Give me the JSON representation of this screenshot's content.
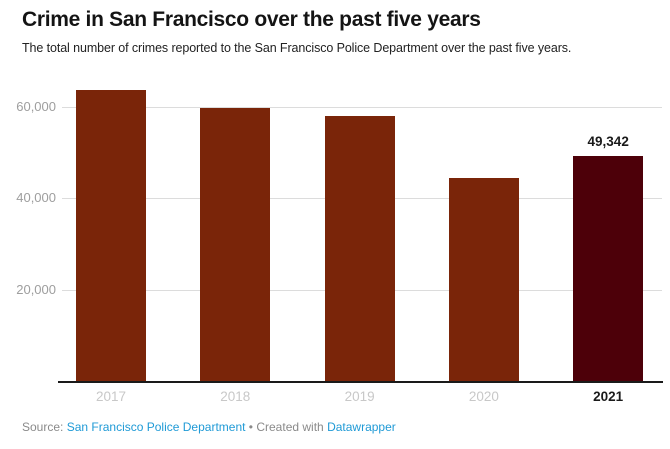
{
  "header": {
    "title": "Crime in San Francisco over the past five years",
    "subtitle": "The total number of crimes reported to the San Francisco Police Department over the past five years."
  },
  "chart_data": {
    "type": "bar",
    "title": "Crime in San Francisco over the past five years",
    "subtitle": "The total number of crimes reported to the San Francisco Police Department over the past five years.",
    "categories": [
      "2017",
      "2018",
      "2019",
      "2020",
      "2021"
    ],
    "values": [
      63800,
      59800,
      58100,
      44400,
      49342
    ],
    "data_labels": [
      null,
      null,
      null,
      null,
      "49,342"
    ],
    "highlight_index": 4,
    "yticks": [
      {
        "value": 20000,
        "label": "20,000"
      },
      {
        "value": 40000,
        "label": "40,000"
      },
      {
        "value": 60000,
        "label": "60,000"
      }
    ],
    "ylim": [
      0,
      65500
    ],
    "grid": true,
    "legend": "none",
    "colors": {
      "bar": "#7a2509",
      "highlight_bar": "#4d0009",
      "gridline": "#dcdcdc",
      "axis": "#1a1a1a",
      "ytick_text": "#9e9e9e",
      "xtick_text": "#c8c8c8",
      "xtick_highlight_text": "#1a1a1a"
    }
  },
  "footer": {
    "source_label": "Source:",
    "source_link": "San Francisco Police Department",
    "separator": "•",
    "created_with": "Created with",
    "tool_link": "Datawrapper"
  }
}
